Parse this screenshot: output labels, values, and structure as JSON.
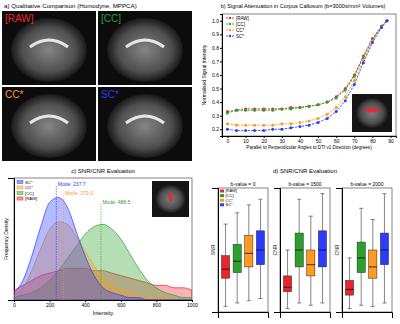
{
  "chart_data": [
    {
      "type": "image",
      "title": "a) Qualitative Comparison (Homodyne, MPPCA)",
      "series": [
        {
          "name": "[RAW]",
          "color": "#e8262b"
        },
        {
          "name": "[CC]",
          "color": "#2ca02c"
        },
        {
          "name": "CC*",
          "color": "#ff9a1f"
        },
        {
          "name": "SC*",
          "color": "#2b3bff"
        }
      ]
    },
    {
      "type": "line",
      "title": "b) Signal Attenuation in Corpus Callosum (b=3000s/mm² Volumes)",
      "x_label": "Parallel to Perpendicular Angles to DTI v1 Direction (degrees)",
      "y_label": "Normalised Signal Intensity",
      "x": [
        0,
        5,
        10,
        15,
        20,
        25,
        30,
        35,
        40,
        45,
        50,
        55,
        60,
        65,
        70,
        75,
        80,
        85,
        88
      ],
      "xlim": [
        -3,
        93
      ],
      "xticks": [
        0,
        10,
        20,
        30,
        40,
        50,
        60,
        70,
        80,
        90
      ],
      "ylim": [
        0.15,
        1.05
      ],
      "yticks": [
        0.2,
        0.3,
        0.4,
        0.5,
        0.6,
        0.7,
        0.8,
        0.9,
        {
          "value": 1,
          "label": "1.0"
        }
      ],
      "grid": false,
      "legend": "upper left",
      "marker": "circle",
      "line_style": "dashed",
      "series": [
        {
          "name": "[RAW]",
          "color": "#e8262b",
          "values": [
            0.33,
            0.34,
            0.35,
            0.35,
            0.35,
            0.35,
            0.35,
            0.36,
            0.36,
            0.37,
            0.38,
            0.4,
            0.44,
            0.5,
            0.6,
            0.74,
            0.87,
            0.96,
            1.0
          ]
        },
        {
          "name": "[CC]",
          "color": "#2ca02c",
          "values": [
            0.32,
            0.34,
            0.34,
            0.34,
            0.34,
            0.34,
            0.35,
            0.35,
            0.36,
            0.37,
            0.38,
            0.4,
            0.43,
            0.49,
            0.59,
            0.73,
            0.86,
            0.96,
            1.0
          ]
        },
        {
          "name": "CC*",
          "color": "#ff9a1f",
          "values": [
            0.24,
            0.23,
            0.23,
            0.23,
            0.23,
            0.23,
            0.24,
            0.24,
            0.25,
            0.26,
            0.28,
            0.31,
            0.36,
            0.44,
            0.56,
            0.71,
            0.85,
            0.95,
            1.0
          ]
        },
        {
          "name": "SC*",
          "color": "#2b3bff",
          "values": [
            0.2,
            0.19,
            0.19,
            0.19,
            0.19,
            0.2,
            0.2,
            0.21,
            0.22,
            0.23,
            0.25,
            0.28,
            0.33,
            0.41,
            0.53,
            0.69,
            0.84,
            0.95,
            1.0
          ]
        }
      ]
    },
    {
      "type": "area",
      "title": "c) SNR/CNR Evaluation",
      "x_label": "Intensity",
      "y_label": "Frequency Density",
      "x": [
        0,
        50,
        100,
        150,
        200,
        250,
        300,
        350,
        400,
        450,
        500,
        550,
        600,
        650,
        700,
        750,
        800,
        850,
        900,
        950,
        1000
      ],
      "xlim": [
        0,
        1000
      ],
      "xticks": [
        0,
        200,
        400,
        600,
        800,
        1000
      ],
      "ylim": [
        0,
        0.005
      ],
      "tick_labels": "x",
      "legend": "upper left",
      "series": [
        {
          "name": "SC*",
          "color": "#2b3bff",
          "values": [
            0.0003,
            0.0008,
            0.0018,
            0.003,
            0.004,
            0.0042,
            0.0038,
            0.0028,
            0.0018,
            0.001,
            0.0005,
            0.0003,
            0.0002,
            0.0001,
            0.0001,
            0,
            0,
            0,
            0,
            0,
            0
          ]
        },
        {
          "name": "CC*",
          "color": "#ff9a1f",
          "values": [
            0.0002,
            0.0005,
            0.0012,
            0.0021,
            0.0029,
            0.0032,
            0.0031,
            0.0026,
            0.002,
            0.0014,
            0.0009,
            0.0006,
            0.0004,
            0.0003,
            0.0002,
            0.0001,
            0.0001,
            0.0001,
            0,
            0,
            0
          ]
        },
        {
          "name": "[CC]",
          "color": "#2ca02c",
          "values": [
            0.0001,
            0.0002,
            0.0003,
            0.0005,
            0.0008,
            0.0012,
            0.0017,
            0.0022,
            0.0027,
            0.003,
            0.0031,
            0.0029,
            0.0025,
            0.0019,
            0.0013,
            0.0008,
            0.0005,
            0.0003,
            0.0002,
            0.0001,
            0.0001
          ]
        },
        {
          "name": "[RAW]",
          "color": "#e8262b",
          "values": [
            0.0004,
            0.0006,
            0.0008,
            0.001,
            0.0011,
            0.0012,
            0.0013,
            0.0013,
            0.0013,
            0.0012,
            0.0012,
            0.0011,
            0.001,
            0.0009,
            0.0008,
            0.0007,
            0.0006,
            0.0006,
            0.0005,
            0.0005,
            0.0004
          ]
        }
      ],
      "annotations": [
        {
          "text": "Mode: 237.7",
          "x": 237.7,
          "color": "#2b3bff"
        },
        {
          "text": "Mode: 279.0",
          "x": 279.0,
          "color": "#ff9a1f"
        },
        {
          "text": "Mode: 488.5",
          "x": 488.5,
          "color": "#2ca02c"
        }
      ]
    },
    {
      "type": "box",
      "title": "d) SNR/CNR Evaluation",
      "legend": "upper left",
      "tick_labels": false,
      "ylim": [
        0,
        110
      ],
      "series": [
        {
          "name": "[RAW]",
          "color": "#e8262b"
        },
        {
          "name": "[CC]",
          "color": "#2ca02c"
        },
        {
          "name": "CC*",
          "color": "#ff9a1f"
        },
        {
          "name": "SC*",
          "color": "#2b3bff"
        }
      ],
      "panels": [
        {
          "title": "b-value = 0",
          "y_label": "SNR",
          "boxes": [
            {
              "whislo": 5,
              "q1": 30,
              "median": 38,
              "q3": 50,
              "whishi": 78
            },
            {
              "whislo": 8,
              "q1": 35,
              "median": 45,
              "q3": 60,
              "whishi": 88
            },
            {
              "whislo": 10,
              "q1": 40,
              "median": 52,
              "q3": 68,
              "whishi": 95
            },
            {
              "whislo": 12,
              "q1": 42,
              "median": 55,
              "q3": 72,
              "whishi": 100
            }
          ]
        },
        {
          "title": "b-value = 1500",
          "y_label": "CNR",
          "boxes": [
            {
              "whislo": 3,
              "q1": 18,
              "median": 22,
              "q3": 32,
              "whishi": 55
            },
            {
              "whislo": 8,
              "q1": 40,
              "median": 55,
              "q3": 70,
              "whishi": 100
            },
            {
              "whislo": 6,
              "q1": 32,
              "median": 42,
              "q3": 55,
              "whishi": 85
            },
            {
              "whislo": 8,
              "q1": 40,
              "median": 55,
              "q3": 72,
              "whishi": 105
            }
          ]
        },
        {
          "title": "b-value = 2000",
          "y_label": "CNR",
          "boxes": [
            {
              "whislo": 3,
              "q1": 15,
              "median": 20,
              "q3": 28,
              "whishi": 48
            },
            {
              "whislo": 6,
              "q1": 35,
              "median": 48,
              "q3": 62,
              "whishi": 92
            },
            {
              "whislo": 5,
              "q1": 30,
              "median": 40,
              "q3": 55,
              "whishi": 82
            },
            {
              "whislo": 8,
              "q1": 42,
              "median": 55,
              "q3": 70,
              "whishi": 105
            }
          ]
        }
      ]
    }
  ]
}
